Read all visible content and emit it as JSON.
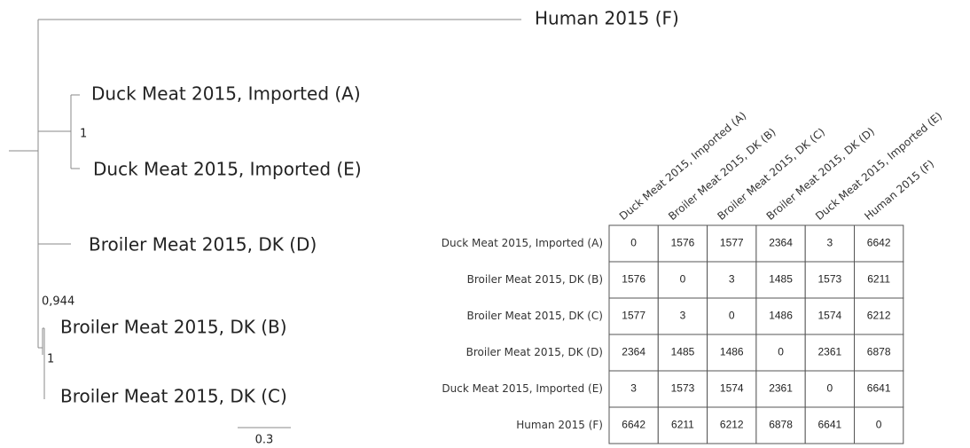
{
  "tree": {
    "leaves": [
      "Human 2015 (F)",
      "Duck Meat 2015, Imported (A)",
      "Duck Meat 2015, Imported (E)",
      "Broiler Meat 2015, DK (D)",
      "Broiler Meat 2015, DK (B)",
      "Broiler Meat 2015, DK (C)"
    ],
    "supports": [
      "1",
      "0,944",
      "1"
    ],
    "scale": "0.3"
  },
  "matrix": {
    "columns": [
      "Duck Meat 2015, Imported (A)",
      "Broiler Meat 2015, DK (B)",
      "Broiler Meat 2015, DK (C)",
      "Broiler Meat 2015, DK (D)",
      "Duck Meat 2015, Imported (E)",
      "Human 2015 (F)"
    ],
    "rows": [
      "Duck Meat 2015, Imported (A)",
      "Broiler Meat 2015, DK (B)",
      "Broiler Meat 2015, DK (C)",
      "Broiler Meat 2015, DK (D)",
      "Duck Meat 2015, Imported (E)",
      "Human 2015 (F)"
    ],
    "cells": [
      [
        0,
        1576,
        1577,
        2364,
        3,
        6642
      ],
      [
        1576,
        0,
        3,
        1485,
        1573,
        6211
      ],
      [
        1577,
        3,
        0,
        1486,
        1574,
        6212
      ],
      [
        2364,
        1485,
        1486,
        0,
        2361,
        6878
      ],
      [
        3,
        1573,
        1574,
        2361,
        0,
        6641
      ],
      [
        6642,
        6211,
        6212,
        6878,
        6641,
        0
      ]
    ]
  }
}
